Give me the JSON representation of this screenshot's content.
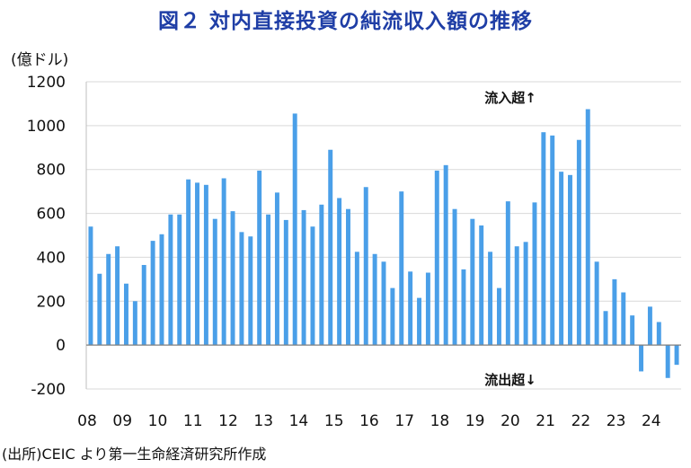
{
  "chart_data": {
    "type": "bar",
    "title": "図２ 対内直接投資の純流収入額の推移",
    "ylabel": "(億ドル)",
    "source": "(出所)CEIC より第一生命経済研究所作成",
    "ylim": [
      -200,
      1200
    ],
    "yticks": [
      -200,
      0,
      200,
      400,
      600,
      800,
      1000,
      1200
    ],
    "year_labels": [
      "08",
      "09",
      "10",
      "11",
      "12",
      "13",
      "14",
      "15",
      "16",
      "17",
      "18",
      "19",
      "20",
      "21",
      "22",
      "23",
      "24"
    ],
    "bar_color": "#4a9fe8",
    "annotations": {
      "inflow": "流入超↑",
      "outflow": "流出超↓"
    },
    "values": [
      540,
      325,
      415,
      450,
      280,
      200,
      365,
      475,
      505,
      595,
      595,
      755,
      740,
      730,
      575,
      760,
      610,
      515,
      495,
      795,
      595,
      695,
      570,
      1055,
      615,
      540,
      640,
      890,
      670,
      620,
      425,
      720,
      415,
      380,
      260,
      700,
      335,
      215,
      330,
      795,
      820,
      620,
      345,
      575,
      545,
      425,
      260,
      655,
      450,
      470,
      650,
      970,
      955,
      790,
      775,
      935,
      1075,
      380,
      155,
      300,
      240,
      135,
      -120,
      175,
      105,
      -150,
      -90
    ]
  }
}
